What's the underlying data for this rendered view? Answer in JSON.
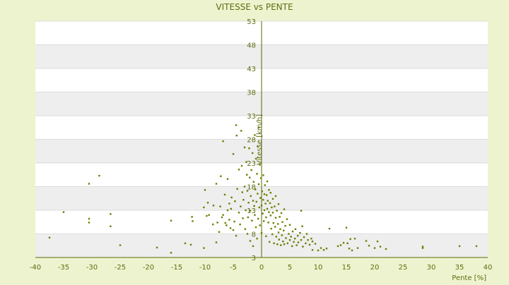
{
  "chart_data": {
    "type": "scatter",
    "title": "VITESSE vs PENTE",
    "xlabel": "Pente [%]",
    "ylabel": "Vitesse [km/h]",
    "xlim": [
      -40,
      40
    ],
    "ylim": [
      3,
      53
    ],
    "x_ticks": [
      -40,
      -35,
      -30,
      -25,
      -20,
      -15,
      -10,
      -5,
      0,
      5,
      10,
      15,
      20,
      25,
      30,
      35,
      40
    ],
    "y_ticks": [
      3,
      8,
      13,
      18,
      23,
      28,
      33,
      38,
      43,
      48,
      53
    ],
    "x_tick_labels": [
      "-40",
      "-35",
      "-30",
      "-25",
      "-20",
      "-15",
      "-10",
      "-5",
      "0",
      "5",
      "10",
      "15",
      "20",
      "25",
      "30",
      "35",
      "40"
    ],
    "y_tick_labels": [
      "3",
      "8",
      "13",
      "18",
      "23",
      "28",
      "33",
      "38",
      "43",
      "48",
      "53"
    ],
    "grid": true,
    "legend": "none",
    "colors": {
      "background": "#eef3cf",
      "band_light": "#ffffff",
      "band_dark": "#eeeeee",
      "axis": "#556b00",
      "marker": "#6b7f00",
      "text": "#5c6e10"
    },
    "series": [
      {
        "points": [
          [
            -37.5,
            7.2
          ],
          [
            -35.0,
            12.6
          ],
          [
            -30.5,
            11.2
          ],
          [
            -30.5,
            10.4
          ],
          [
            -30.5,
            18.6
          ],
          [
            -28.7,
            20.3
          ],
          [
            -26.7,
            12.2
          ],
          [
            -26.7,
            9.6
          ],
          [
            -25.0,
            5.6
          ],
          [
            -18.5,
            5.1
          ],
          [
            -16.0,
            4.0
          ],
          [
            -16.0,
            10.8
          ],
          [
            -13.5,
            6.0
          ],
          [
            -12.5,
            5.7
          ],
          [
            -12.3,
            11.6
          ],
          [
            -12.2,
            10.7
          ],
          [
            -10.2,
            5.0
          ],
          [
            -10.2,
            13.6
          ],
          [
            -10.0,
            17.3
          ],
          [
            -9.7,
            11.8
          ],
          [
            -9.5,
            14.6
          ],
          [
            -9.3,
            12.0
          ],
          [
            -8.6,
            10.0
          ],
          [
            -8.5,
            14.0
          ],
          [
            -8.0,
            18.6
          ],
          [
            -8.0,
            6.2
          ],
          [
            -7.8,
            10.4
          ],
          [
            -7.5,
            8.4
          ],
          [
            -7.3,
            13.8
          ],
          [
            -7.2,
            20.2
          ],
          [
            -7.0,
            11.5
          ],
          [
            -6.8,
            27.6
          ],
          [
            -6.8,
            12.0
          ],
          [
            -6.5,
            16.3
          ],
          [
            -6.4,
            10.3
          ],
          [
            -6.2,
            9.8
          ],
          [
            -6.0,
            13.0
          ],
          [
            -6.0,
            19.6
          ],
          [
            -5.7,
            11.0
          ],
          [
            -5.7,
            14.4
          ],
          [
            -5.5,
            9.2
          ],
          [
            -5.4,
            13.3
          ],
          [
            -5.3,
            15.7
          ],
          [
            -5.0,
            24.9
          ],
          [
            -5.0,
            8.8
          ],
          [
            -4.8,
            10.6
          ],
          [
            -4.7,
            14.9
          ],
          [
            -4.5,
            31.0
          ],
          [
            -4.5,
            7.6
          ],
          [
            -4.4,
            28.8
          ],
          [
            -4.3,
            17.5
          ],
          [
            -4.0,
            21.6
          ],
          [
            -4.0,
            12.5
          ],
          [
            -3.8,
            10.0
          ],
          [
            -3.7,
            13.8
          ],
          [
            -3.6,
            29.8
          ],
          [
            -3.5,
            22.4
          ],
          [
            -3.4,
            16.8
          ],
          [
            -3.3,
            11.3
          ],
          [
            -3.2,
            15.2
          ],
          [
            -3.0,
            26.3
          ],
          [
            -3.0,
            18.0
          ],
          [
            -2.9,
            9.0
          ],
          [
            -2.8,
            13.0
          ],
          [
            -2.7,
            23.2
          ],
          [
            -2.6,
            20.5
          ],
          [
            -2.5,
            17.1
          ],
          [
            -2.5,
            8.0
          ],
          [
            -2.4,
            11.5
          ],
          [
            -2.3,
            14.6
          ],
          [
            -2.2,
            26.1
          ],
          [
            -2.1,
            19.9
          ],
          [
            -2.0,
            12.9
          ],
          [
            -2.0,
            6.5
          ],
          [
            -1.9,
            16.0
          ],
          [
            -1.8,
            21.5
          ],
          [
            -1.7,
            10.8
          ],
          [
            -1.6,
            25.1
          ],
          [
            -1.5,
            15.0
          ],
          [
            -1.5,
            5.4
          ],
          [
            -1.4,
            19.0
          ],
          [
            -1.3,
            13.9
          ],
          [
            -1.2,
            28.9
          ],
          [
            -1.2,
            12.0
          ],
          [
            -1.1,
            17.4
          ],
          [
            -1.0,
            23.9
          ],
          [
            -1.0,
            9.4
          ],
          [
            -0.9,
            14.8
          ],
          [
            -0.8,
            20.7
          ],
          [
            -0.8,
            7.0
          ],
          [
            -0.7,
            26.5
          ],
          [
            -0.7,
            16.5
          ],
          [
            -0.6,
            11.2
          ],
          [
            -0.5,
            30.5
          ],
          [
            -0.5,
            18.5
          ],
          [
            -0.4,
            13.6
          ],
          [
            -0.3,
            22.6
          ],
          [
            -0.3,
            9.8
          ],
          [
            -0.2,
            15.6
          ],
          [
            -0.1,
            19.8
          ],
          [
            0.0,
            14.0
          ],
          [
            0.0,
            8.2
          ],
          [
            0.1,
            17.0
          ],
          [
            0.2,
            12.3
          ],
          [
            0.3,
            20.4
          ],
          [
            0.3,
            15.2
          ],
          [
            0.4,
            10.7
          ],
          [
            0.5,
            16.4
          ],
          [
            0.5,
            13.0
          ],
          [
            0.6,
            18.3
          ],
          [
            0.7,
            14.4
          ],
          [
            0.8,
            11.5
          ],
          [
            0.8,
            7.5
          ],
          [
            0.9,
            16.2
          ],
          [
            1.0,
            13.3
          ],
          [
            1.0,
            19.1
          ],
          [
            1.1,
            15.0
          ],
          [
            1.2,
            10.4
          ],
          [
            1.3,
            17.3
          ],
          [
            1.3,
            12.6
          ],
          [
            1.4,
            6.3
          ],
          [
            1.5,
            14.5
          ],
          [
            1.6,
            11.9
          ],
          [
            1.6,
            16.7
          ],
          [
            1.7,
            9.1
          ],
          [
            1.8,
            13.6
          ],
          [
            1.9,
            7.9
          ],
          [
            2.0,
            12.5
          ],
          [
            2.0,
            15.4
          ],
          [
            2.1,
            10.3
          ],
          [
            2.2,
            6.0
          ],
          [
            2.3,
            13.8
          ],
          [
            2.4,
            9.5
          ],
          [
            2.5,
            11.4
          ],
          [
            2.5,
            16.0
          ],
          [
            2.6,
            7.4
          ],
          [
            2.7,
            12.9
          ],
          [
            2.8,
            5.8
          ],
          [
            2.9,
            10.1
          ],
          [
            3.0,
            8.3
          ],
          [
            3.0,
            14.3
          ],
          [
            3.1,
            6.8
          ],
          [
            3.2,
            11.6
          ],
          [
            3.3,
            9.0
          ],
          [
            3.4,
            5.6
          ],
          [
            3.5,
            12.4
          ],
          [
            3.6,
            7.7
          ],
          [
            3.7,
            10.5
          ],
          [
            3.8,
            6.4
          ],
          [
            3.9,
            8.7
          ],
          [
            4.0,
            13.2
          ],
          [
            4.0,
            5.8
          ],
          [
            4.2,
            9.7
          ],
          [
            4.3,
            7.1
          ],
          [
            4.5,
            11.1
          ],
          [
            4.6,
            6.0
          ],
          [
            4.8,
            8.0
          ],
          [
            5.0,
            6.7
          ],
          [
            5.0,
            9.9
          ],
          [
            5.2,
            7.4
          ],
          [
            5.4,
            5.4
          ],
          [
            5.5,
            8.5
          ],
          [
            5.7,
            6.3
          ],
          [
            5.9,
            7.0
          ],
          [
            6.0,
            9.0
          ],
          [
            6.2,
            5.6
          ],
          [
            6.4,
            7.6
          ],
          [
            6.5,
            6.2
          ],
          [
            6.8,
            8.2
          ],
          [
            7.0,
            6.7
          ],
          [
            7.0,
            12.9
          ],
          [
            7.2,
            9.6
          ],
          [
            7.3,
            5.3
          ],
          [
            7.5,
            7.3
          ],
          [
            7.8,
            6.0
          ],
          [
            8.0,
            8.0
          ],
          [
            8.2,
            6.7
          ],
          [
            8.5,
            5.7
          ],
          [
            8.8,
            7.0
          ],
          [
            9.0,
            4.6
          ],
          [
            9.0,
            6.4
          ],
          [
            9.5,
            5.9
          ],
          [
            10.0,
            4.5
          ],
          [
            10.5,
            5.0
          ],
          [
            11.0,
            4.6
          ],
          [
            11.5,
            4.9
          ],
          [
            12.0,
            9.1
          ],
          [
            13.5,
            5.4
          ],
          [
            14.0,
            5.6
          ],
          [
            14.5,
            6.1
          ],
          [
            15.0,
            9.3
          ],
          [
            15.2,
            6.0
          ],
          [
            15.5,
            4.9
          ],
          [
            15.7,
            6.9
          ],
          [
            16.0,
            4.5
          ],
          [
            16.5,
            7.0
          ],
          [
            17.0,
            5.0
          ],
          [
            18.5,
            6.5
          ],
          [
            19.0,
            5.5
          ],
          [
            20.0,
            5.0
          ],
          [
            20.5,
            6.4
          ],
          [
            21.0,
            5.3
          ],
          [
            22.0,
            4.8
          ],
          [
            28.5,
            5.0
          ],
          [
            28.5,
            5.3
          ],
          [
            35.0,
            5.4
          ],
          [
            38.0,
            5.4
          ]
        ]
      }
    ]
  }
}
